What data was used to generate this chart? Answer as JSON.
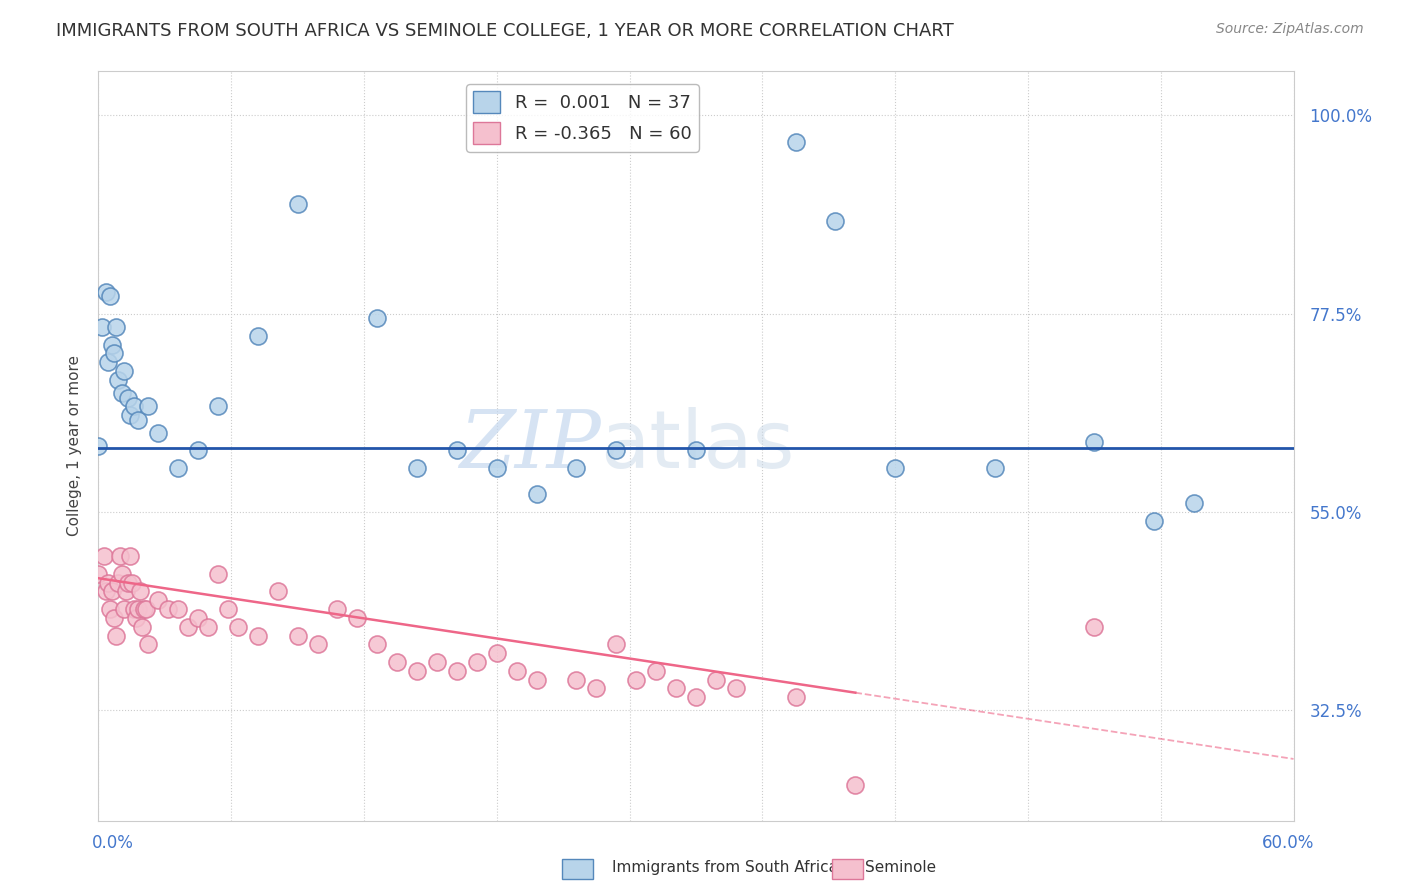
{
  "title": "IMMIGRANTS FROM SOUTH AFRICA VS SEMINOLE COLLEGE, 1 YEAR OR MORE CORRELATION CHART",
  "source": "Source: ZipAtlas.com",
  "ylabel": "College, 1 year or more",
  "xmin": 0.0,
  "xmax": 0.6,
  "ymin": 0.2,
  "ymax": 1.05,
  "R_blue": 0.001,
  "N_blue": 37,
  "R_pink": -0.365,
  "N_pink": 60,
  "legend_label_blue": "Immigrants from South Africa",
  "legend_label_pink": "Seminole",
  "blue_dot_color": "#b8d4ea",
  "blue_dot_edge": "#5588bb",
  "pink_dot_color": "#f5c0ce",
  "pink_dot_edge": "#dd7799",
  "blue_line_color": "#2255aa",
  "pink_line_color": "#ee6688",
  "blue_line_y": 0.623,
  "pink_line_x0": 0.0,
  "pink_line_y0": 0.475,
  "pink_line_x1": 0.6,
  "pink_line_y1": 0.27,
  "blue_points_x": [
    0.0,
    0.002,
    0.004,
    0.005,
    0.006,
    0.007,
    0.008,
    0.009,
    0.01,
    0.012,
    0.013,
    0.015,
    0.016,
    0.018,
    0.02,
    0.025,
    0.03,
    0.04,
    0.05,
    0.06,
    0.08,
    0.1,
    0.14,
    0.16,
    0.18,
    0.2,
    0.22,
    0.24,
    0.26,
    0.3,
    0.35,
    0.37,
    0.4,
    0.45,
    0.5,
    0.53,
    0.55
  ],
  "blue_points_y": [
    0.625,
    0.76,
    0.8,
    0.72,
    0.795,
    0.74,
    0.73,
    0.76,
    0.7,
    0.685,
    0.71,
    0.68,
    0.66,
    0.67,
    0.655,
    0.67,
    0.64,
    0.6,
    0.62,
    0.67,
    0.75,
    0.9,
    0.77,
    0.6,
    0.62,
    0.6,
    0.57,
    0.6,
    0.62,
    0.62,
    0.97,
    0.88,
    0.6,
    0.6,
    0.63,
    0.54,
    0.56
  ],
  "pink_points_x": [
    0.0,
    0.003,
    0.004,
    0.005,
    0.006,
    0.007,
    0.008,
    0.009,
    0.01,
    0.011,
    0.012,
    0.013,
    0.014,
    0.015,
    0.016,
    0.017,
    0.018,
    0.019,
    0.02,
    0.021,
    0.022,
    0.023,
    0.024,
    0.025,
    0.03,
    0.035,
    0.04,
    0.045,
    0.05,
    0.055,
    0.06,
    0.065,
    0.07,
    0.08,
    0.09,
    0.1,
    0.11,
    0.12,
    0.13,
    0.14,
    0.15,
    0.16,
    0.17,
    0.18,
    0.19,
    0.2,
    0.21,
    0.22,
    0.24,
    0.25,
    0.26,
    0.27,
    0.28,
    0.29,
    0.3,
    0.31,
    0.32,
    0.35,
    0.38,
    0.5
  ],
  "pink_points_y": [
    0.48,
    0.5,
    0.46,
    0.47,
    0.44,
    0.46,
    0.43,
    0.41,
    0.47,
    0.5,
    0.48,
    0.44,
    0.46,
    0.47,
    0.5,
    0.47,
    0.44,
    0.43,
    0.44,
    0.46,
    0.42,
    0.44,
    0.44,
    0.4,
    0.45,
    0.44,
    0.44,
    0.42,
    0.43,
    0.42,
    0.48,
    0.44,
    0.42,
    0.41,
    0.46,
    0.41,
    0.4,
    0.44,
    0.43,
    0.4,
    0.38,
    0.37,
    0.38,
    0.37,
    0.38,
    0.39,
    0.37,
    0.36,
    0.36,
    0.35,
    0.4,
    0.36,
    0.37,
    0.35,
    0.34,
    0.36,
    0.35,
    0.34,
    0.24,
    0.42
  ]
}
